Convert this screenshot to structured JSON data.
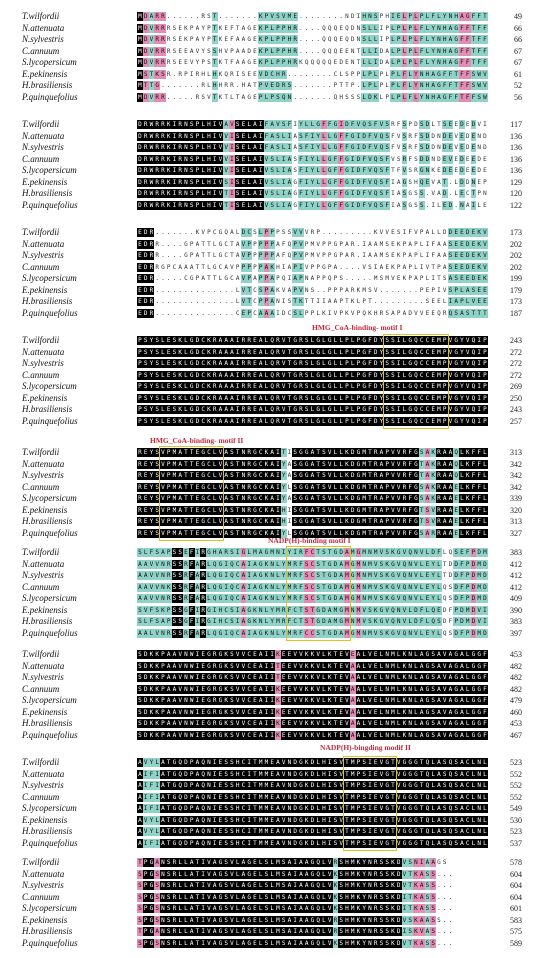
{
  "species": [
    "T.wilfordii",
    "N.attenuata",
    "N.sylvestris",
    "C.annuum",
    "S.lycopersicum",
    "E.pekinensis",
    "H.brasiliensis",
    "P.quinquefolius"
  ],
  "colors": {
    "identical": "#000000",
    "high": "#e58cb4",
    "partial": "#8fd3c8",
    "motif_box": "#e2c21c",
    "motif_label": "#c22a3c"
  },
  "motifs": [
    {
      "name": "HMG_CoA-binding- motif I",
      "block": 4,
      "label_pos": "above"
    },
    {
      "name": "HMG_CoA-binding- motif II",
      "block": 5,
      "label_pos": "above"
    },
    {
      "name": "NADP(H)-binding motif I",
      "block": 6,
      "label_pos": "above"
    },
    {
      "name": "NADP(H)-bingding modif II",
      "block": 8,
      "label_pos": "above"
    }
  ],
  "blocks": [
    {
      "ends": [
        49,
        66,
        66,
        67,
        67,
        61,
        52,
        56
      ],
      "rows": [
        "MDARR......RST.......KPVSVME........NDIHNSPHIELPLPLFLYNHAGFFTFFSWVIML",
        "MDVRRRSEKPAYPTKEFTAGEKPLPPHR....QQQEQDNSLLIPLPLPLFLYNHAGFFTFFSWVTNQL",
        "MDVRRRSEKPAYPTKEFAAGEKPLPPHR....QQQEQDNSLLIPLPLPLFLYNHAGFFTFFSWVTNQL",
        "MDVRRRSEEAVYSSHVPAADEKPLPPHR....QQQEENTLLIDALPLPLFLYNHAGFFTFFSWVTNQL",
        "MDVRRRSEEVYPSTKTFAAGEKPLPPHRKQQQQQEDENTLLIDALPLPLFLYNHAGFFTFFSWVTNQL",
        "MSTKSR.RPIRHLHKQRISEEVDCHR........CLSPPLPLPLPLFLYNHAGFFTFFSWVTNQL",
        "MTTG.......RLHHRR.HATPVEDRS.......PTTP.LPLPLPLFLYNHAGFFTFFSWVTNQL",
        "MDVRR.....RSVTKTLTAGEPLPSQN.......QHSSSLDKLPLPLFLYNHAGFFTFFSWVTNQL"
      ]
    },
    {
      "ends": [
        117,
        136,
        136,
        136,
        136,
        129,
        120,
        122
      ],
      "rows": [
        "DRWRRKIRNSPLHIVAVSELAIFAVSFIYLLGFFGIDFVQSFVSRFSPDSDLTSEEDEDVIIK",
        "DRWRRKIRNSPLHIVVISELAIFASLIASFIYLLGFFGIDFVQSFVSRFSDDNDEVEDENDEQFILE",
        "DRWRRKIRNSPLHIVVISELAIFASLIASFIYLLGFFGIDFVQSFVSRFSDDNDEVEDENDEQFILE",
        "DRWRRKIRNSPLHIVVISELAIVSLIASFIYLLGFFGIDFVQSFVSRFSDDNDEVEDEEDEQFILE",
        "DRWRRKIRNSPLHIVVISELAIVSLIASFIYLLGFFGIDFVQSFTFVSRGNKEDEEDEEDE.....",
        "DRWRRKIRNSPLHIVSISELAIVSLIAGFIYLLGFFGIDFVQSFIAGSHQEVAT.LDDNEPSNVL",
        "DRWRRKIRNSPLHIVTISELAIVSLIAGFIYLLGFFGIDFVQSFIASGSS.VAD.LECTPNYLID",
        "DRWRRKIRNSPLHIVTISELAIVSLIAGFIYLLGFFGIDFVQSFIASGSS.ILED.NAILE"
      ]
    },
    {
      "ends": [
        173,
        202,
        202,
        202,
        199,
        179,
        173,
        187
      ],
      "rows": [
        "EDR.......KVPCGQALDCSLPPPSSVVVRP.........KVVESIFVPALLDDEEDEKVVLVMKT",
        "EDRR....GPATTLGCTAVPPPPPAFQPVPMVPPGPAR.IAAMSEKPAPLIFAASEEDEKVVLVMKM",
        "EDRR....GPATTLGCTAVPPPPPAFQPVPMVPPGPAR.IAAMSEKPAPLIFAASEEDEKVVLVMKM",
        "EDRRGPCAAATTLGCAVPPPPPAKHIAPIVPPGPA....VSIAEKPAPLIVTPASEEDEKVVLVMKI",
        "EDR.....CGPATTLGCAVPAPPAPQIAPNAPPQPS.....MSMVEKPAPLITSASEEDEKVVLVMKT",
        "EDR..............LVTCSPAKVAPVNS..PPPARKMSV.......PEPIVSPLASEEDEKVVLVMKT",
        "EDR..............LVTCPPANISTKTTIIAAPTKLPT.........SEELIAPLVEEDEKVVLVMKT",
        "EDR..............CEPCAAAIDCSLPPLKIVPKVPQKHRSAPADVVEEQRQSASTTTTEDEKVVLVMTT"
      ]
    },
    {
      "ends": [
        243,
        272,
        272,
        272,
        269,
        250,
        243,
        257
      ],
      "rows": [
        "PSYSLESKLGDCKRAAAIRREALQRVTGRSLGLGLLPLPGFDYSSILGQCCEMPVGYVQIPVGIAGPLLLDG",
        "PSYSLESKLGDCKRAAAIRREALQRVTGRSLGLGLLPLPGFDYSSILGQCCEMPVGYVQIPVGIAGPLLLNG",
        "PSYSLESKLGDCKRAAAIRREALQRVTGRSLGLGLLPLPGFDYSSILGQCCEMPVGYVQIPVGIAGPLLLNG",
        "PSYSLESKLGDCKRAAAIRREALQRVTGRSLGLGLLPLPGFDYSSILGQCCEMPVGYVQIPVGIAGPLLLNG",
        "PSYSLESKLGDCKRAAAIRREALQRVTGRSLGLGLLPLPGFDYSSILGQCCEMPVGYVQIPVGIAGPLLLNG",
        "PSYSLESKLGDCKRAAAIRREALQRVTGRSLGLGLLPLPGFDYSSILGQCCEMPVGYVQIPVGIAGPLLLDG",
        "PSYSLESKLGDCKRAAAIRREALQRVTGRSLGLGLLPLPGFDYSSILGQCCEMPVGYVQIPVGIAGPLLLDG",
        "PSYSLESKLGDCKRAAAIRREALQRVTGRSLGLGLLPLPGFDYSSILGQCCEMPVGYVQIPVGIAGPLLLNE"
      ]
    },
    {
      "ends": [
        313,
        342,
        342,
        342,
        339,
        320,
        313,
        327
      ],
      "rows": [
        "REYSVPMATTEGCLVASTNRGCKAITISGGATSVLLKDGMTRAPVVRFGSAKRAAQLKFFLEDPINFDT",
        "REYSVPMATTEGCLVASTNRGCKAIYASGGATSVLLKDGMTRAPVVRFGTAKRAAQLKFFLEDPINFET",
        "REYSVPMATTEGCLVASTNRGCKAIYASGGATSVLLKDGMTRAPVVRFGTAKRAAQLKFFLEDPINFET",
        "REYSVPMATTEGCLVASTNRGCKAIYLSGGATSVLLKDGMTRAPVVRFGSAKRAAELKFFLEDPINFET",
        "REYSVPMATTEGCLVASTNRGCKAIYASGGATSVLLKDGMTRAPVVRFGSAKRAAELKFFLEDPINFET",
        "REYSVPMATTEGCLVASTNRGCKAIHISGGATSVLLKDGMTRAPVVRFGTSVRAAELKFFLEDPINFDT",
        "REYSVPMATTEGCLVASTNRGCKAIHISGGATSVLLKDGMTRAPVVRFGTSVRAAELKFFLEDPINFDT",
        "REYSVPMATTEGCLVASTNRGCKAIYLSGGATSVLLKDGMTRAPVVRFGSARRAAELKFFLEDPINFET"
      ]
    },
    {
      "ends": [
        383,
        412,
        412,
        412,
        409,
        390,
        383,
        397
      ],
      "rows": [
        "SLFSAPSSEFIRGHARSIGLMAGMNIYIRFCTSTGDAMGMNMVSKGVQNVLDFLQSEFPDMDVIGISGNFC",
        "AAVVNRSSRFARLQGIQCAIAGKNLYMRFSCSTGDAMGMNMVSKGVQNVLEYLTDDFPDMDVIGISGNFC",
        "AAVVNRSSRFARLQGIQCAIAGKNLYMRFSCSTGDAMGMNMVSKGVQNVLEYLTDDFPDMDVIGISGNFC",
        "AAVVNKSSRFARLQGIQCAIAGKNLYMRFSCSTGDAMGMNMVSKGVQNVLEYLQSDFPDMDVIGISGNFC",
        "AAVVNRSSRFARLQGIQCAIAGKNLYMRFSCSTGDAMGMNMVSKGVQNVLEYLQSDFPDMDVIGISGNFC",
        "SVFSKPSSGFIRGIHCSIAGKNLYMRFCTSTGDAMGMNMVSKGVQNVLDFLQEDFPDMDVIGISGNYC",
        "SLFSAPSSGFIRGIHCSIAGKNLYMRFCTSTGDAMGMNMVSKGVQNVLDFLQSDFPDMDVIGISGNFC",
        "AALVNRSSRFARLQGIQCAIAGKNLYMRFCCSTGDAMGMNMVSKGVQNVLEYLQSDFPDMDVIGISGNFC"
      ]
    },
    {
      "ends": [
        453,
        482,
        482,
        482,
        479,
        460,
        453,
        467
      ],
      "rows": [
        "SDKKPAAVNWIEGRGKSVVCEAIIKEEVVKKVLKTEVEALVELNMLKNLAGSAVAGALGGFNAHASNIVS",
        "SDKKPAAVNWIEGRGKSVVCEAIITEEVVKKVLKTEVAALVELNMLKNLAGSAVAGALGGFNAHASNIVS",
        "SDKKPAAVNWIEGRGKSVVCEAIITEEVVKKVLKTEVAALVELNMLKNLAGSAVAGALGGFNAHASNIVS",
        "SDKKPAAVNWIEGRGKSVVCEAIIKEEVVKKVLKTEVAALVELNMLKNLAGSAVAGALGGFNAHASNIVS",
        "SDKKPAAVNWIEGRGKSVVCEAIIKEEVVKKVLKTEVAALVELNMLKNLAGSAVAGALGGFNAHASNIVS",
        "SDKKPAAVNWIEGRGKSVVCEAIIKEEVVKKVLKTEVAALVELNMLKNLAGSAVAGALGGFNAHASNIVS",
        "SDKKPAAVNWIEGRGKSVVCEAIIKEEVVKKVLKTEVAALVELNMLKNLAGSAVAGALGGFNAHASNIVS",
        "SDKKPAAVNWIEGRGKSVVCEAIIKEEVVKKVLKTEVAALVELNMLKNLAGSAVAGALGGFNAHASNIVS"
      ]
    },
    {
      "ends": [
        523,
        552,
        552,
        552,
        549,
        530,
        523,
        537
      ],
      "rows": [
        "AVYLATGQDPAQNIESSHCITMMEAVNDGKDLHISVTMPSIEVGTVGGGTQLASQSACLNLLGVKGANRE",
        "AIFIATGQDPAQNIESSHCITMMEAVNDGKDLHISVTMPSIEVGTVGGGTQLASQSACLNLLGVKGASRE",
        "AIFIATGQDPAQNIESSHCITMMEAVNDGKDLHISVTMPSIEVGTVGGGTQLASQSACLNLLGVKGASRE",
        "AIFIATGQDPAQNIESSHCITMMEAVNDGKDLHISVTMPSIEVGTVGGGTQLASQSACLNLLGVKGASKE",
        "AIFIATGQDPAQNIESSHCITMMEAVNDGKDLHISVTMPSIEVGTVGGGTQLASQSACLNLLGVKGASKE",
        "AVYLATGQDPAQNIESSHCITMMEAVNDGKDLHISVTMPSIEVGTVGGGTQLASQSACLNLLGVKGANRE",
        "AVYLATGQDPAQNIESSHCITMMEAVNDGKDLHISVTMPSIEVGTVGGGTQLASQSACLNLLGVKGANRE",
        "AIFIATGQDPAQNIESSHCITMMEAVNDGKDLHISVTMPSIEVGTVGGGTQLASQSACLNLLGVKGANRE"
      ]
    },
    {
      "ends": [
        578,
        604,
        604,
        604,
        601,
        583,
        575,
        589
      ],
      "rows": [
        "TPGANSRLLATIVAGSVLAGELSLMSAIAAGQLVRSHMKYNRSSKDVSNIAAGS",
        "SPGSNSRLLATIVAGSVLAGELSLMSAIAAGQLVKSHMKYNRSSKDVTKASS...",
        "SPGSNSRLLATIVAGSVLAGELSLMSAIAAGQLVKSHMKYNRSSKDVTKASS...",
        "SPGSNSRLLATIVAGSVLAGELSLMSAIAAGQLVKSHMKYNRSSKDITKASS...",
        "SPGSNSRLLATIVAGSVLAGELSLMSAIAAGQLVKSHMKYNRSSKDITKASS...",
        "SPGSNSRLLATIVAGSVLAGELSLMSAIAAGQLVRSHMKYNRSSKDVSKAASS..",
        "TPGANSRLLATIVAGSVLAGELSLMSAIAAGQLVRSHMKYNRSSKDISKVAS...",
        "SPGSNSRLLATIVAGSVLAGELSLMSAIAAGQLVKSHMKYNRSSKDVTKASS..."
      ]
    }
  ]
}
